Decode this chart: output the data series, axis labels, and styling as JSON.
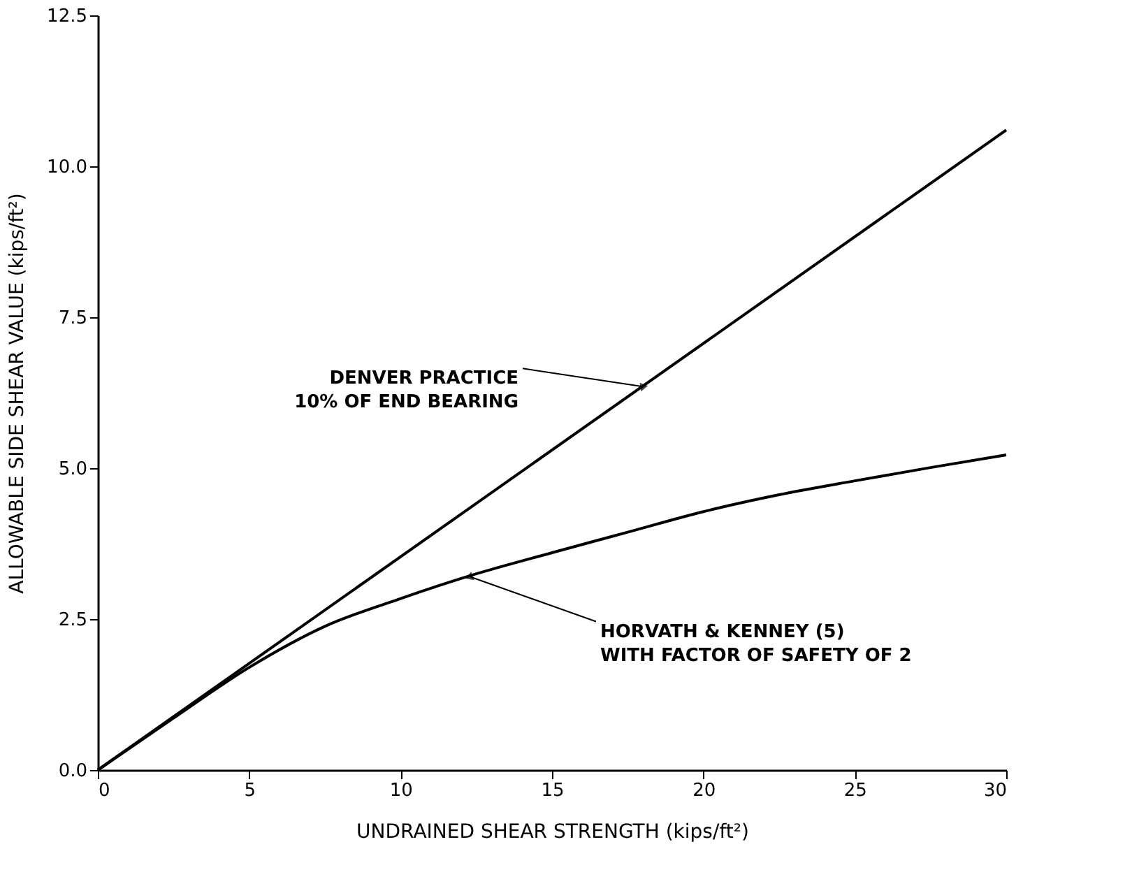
{
  "chart_data": {
    "type": "line",
    "xlabel": "UNDRAINED SHEAR STRENGTH (kips/ft²)",
    "ylabel": "ALLOWABLE SIDE SHEAR VALUE (kips/ft²)",
    "xlim": [
      0,
      30
    ],
    "xticks": [
      0,
      5,
      10,
      15,
      20,
      25,
      30
    ],
    "ylim": [
      0,
      12.5
    ],
    "yticks": [
      {
        "value": 0,
        "label": "0.0"
      },
      {
        "value": 2.5,
        "label": "2.5"
      },
      {
        "value": 5,
        "label": "5.0"
      },
      {
        "value": 7.5,
        "label": "7.5"
      },
      {
        "value": 10,
        "label": "10.0"
      },
      {
        "value": 12.5,
        "label": "12.5"
      }
    ],
    "grid": false,
    "marker": "none",
    "line_style": "solid",
    "series": [
      {
        "color": "#000000",
        "x": [
          0,
          30
        ],
        "values": [
          0,
          10.6
        ]
      },
      {
        "color": "#000000",
        "x": [
          0,
          2.5,
          5,
          7.5,
          10,
          12.5,
          15,
          17.5,
          20,
          22.5,
          25,
          27.5,
          30
        ],
        "values": [
          0,
          0.86,
          1.7,
          2.38,
          2.84,
          3.25,
          3.6,
          3.94,
          4.28,
          4.56,
          4.79,
          5.01,
          5.22
        ]
      }
    ],
    "annotations": [
      {
        "text": "DENVER PRACTICE\n10% OF END BEARING",
        "x": 18,
        "y": 6.35
      },
      {
        "text": "HORVATH & KENNEY (5)\nWITH FACTOR OF SAFETY OF 2",
        "x": 12.3,
        "y": 3.2
      }
    ]
  }
}
